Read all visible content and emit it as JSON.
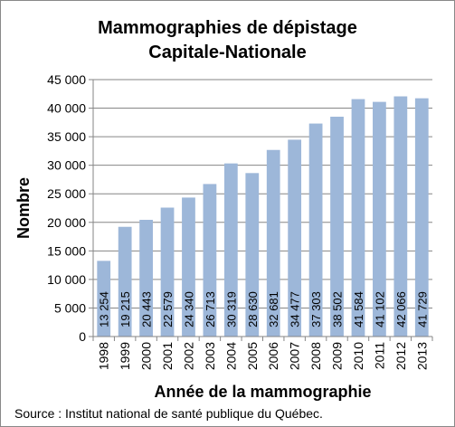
{
  "chart_data": {
    "type": "bar",
    "title": "Mammographies de dépistage",
    "subtitle": "Capitale-Nationale",
    "xlabel": "Année de la mammographie",
    "ylabel": "Nombre",
    "categories": [
      "1998",
      "1999",
      "2000",
      "2001",
      "2002",
      "2003",
      "2004",
      "2005",
      "2006",
      "2007",
      "2008",
      "2009",
      "2010",
      "2011",
      "2012",
      "2013"
    ],
    "values": [
      13254,
      19215,
      20443,
      22579,
      24340,
      26713,
      30319,
      28630,
      32681,
      34477,
      37303,
      38502,
      41584,
      41102,
      42066,
      41729
    ],
    "value_labels": [
      "13 254",
      "19 215",
      "20 443",
      "22 579",
      "24 340",
      "26 713",
      "30 319",
      "28 630",
      "32 681",
      "34 477",
      "37 303",
      "38 502",
      "41 584",
      "41 102",
      "42 066",
      "41 729"
    ],
    "ylim": [
      0,
      45000
    ],
    "yticks": [
      0,
      5000,
      10000,
      15000,
      20000,
      25000,
      30000,
      35000,
      40000,
      45000
    ],
    "ytick_labels": [
      "0",
      "5 000",
      "10 000",
      "15 000",
      "20 000",
      "25 000",
      "30 000",
      "35 000",
      "40 000",
      "45 000"
    ],
    "grid": true,
    "bar_color": "#9db7d9"
  },
  "source": "Source : Institut national de santé publique du Québec."
}
